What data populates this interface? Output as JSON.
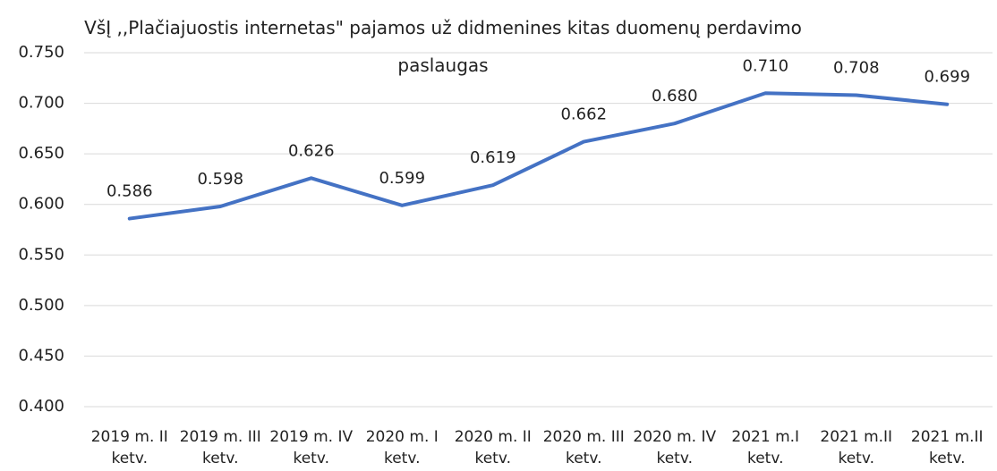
{
  "chart_data": {
    "type": "line",
    "title": "VšĮ ,,Plačiajuostis internetas\" pajamos už didmenines kitas duomenų perdavimo paslaugas",
    "categories": [
      "2019 m. II ketv.",
      "2019 m. III ketv.",
      "2019 m. IV ketv.",
      "2020 m. I ketv.",
      "2020 m. II ketv.",
      "2020 m. III ketv.",
      "2020 m. IV ketv.",
      "2021 m.I ketv.",
      "2021 m.II ketv.",
      "2021 m.II ketv."
    ],
    "series": [
      {
        "color": "#4472c4",
        "values": [
          0.586,
          0.598,
          0.626,
          0.599,
          0.619,
          0.662,
          0.68,
          0.71,
          0.708,
          0.699
        ],
        "value_labels": [
          "0.586",
          "0.598",
          "0.626",
          "0.599",
          "0.619",
          "0.662",
          "0.680",
          "0.710",
          "0.708",
          "0.699"
        ]
      }
    ],
    "ylim": [
      0.4,
      0.75
    ],
    "yticks": [
      {
        "value": 0.4,
        "label": "0.400"
      },
      {
        "value": 0.45,
        "label": "0.450"
      },
      {
        "value": 0.5,
        "label": "0.500"
      },
      {
        "value": 0.55,
        "label": "0.550"
      },
      {
        "value": 0.6,
        "label": "0.600"
      },
      {
        "value": 0.65,
        "label": "0.650"
      },
      {
        "value": 0.7,
        "label": "0.700"
      },
      {
        "value": 0.75,
        "label": "0.750"
      }
    ],
    "grid": true
  }
}
